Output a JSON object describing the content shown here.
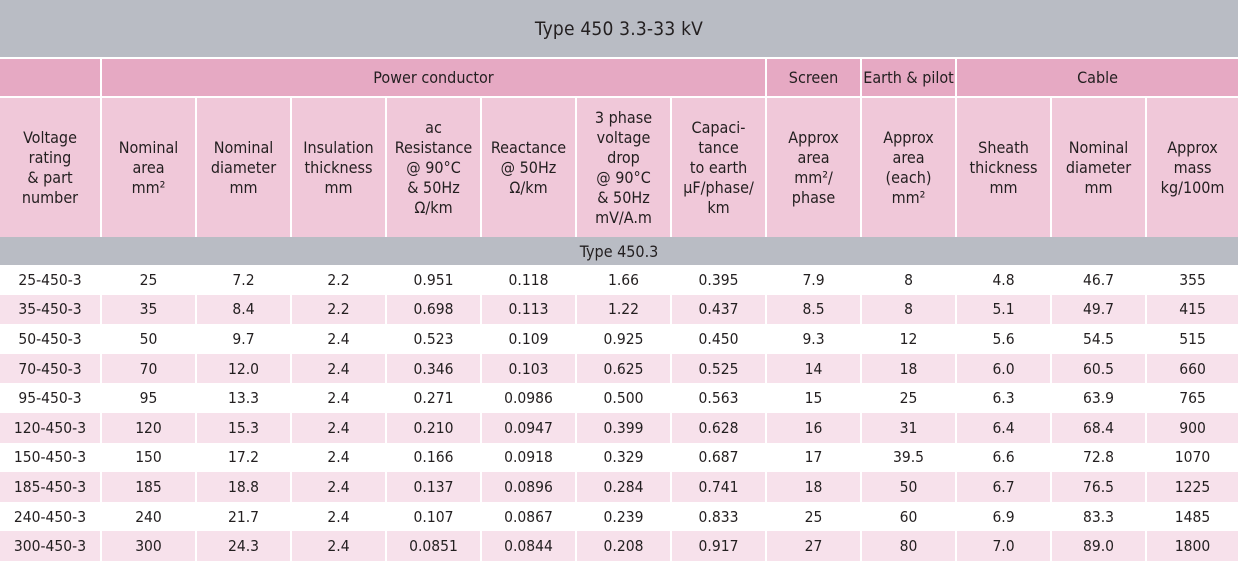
{
  "title": "Type 450  3.3-33 kV",
  "groups": {
    "power_conductor": "Power conductor",
    "screen": "Screen",
    "earth_pilot": "Earth & pilot",
    "cable": "Cable"
  },
  "columns": [
    "Voltage\nrating\n& part\nnumber",
    "Nominal\narea\nmm²",
    "Nominal\ndiameter\nmm",
    "Insulation\nthickness\nmm",
    "ac\nResistance\n@ 90°C\n& 50Hz\nΩ/km",
    "Reactance\n@ 50Hz\nΩ/km",
    "3 phase\nvoltage\ndrop\n@ 90°C\n& 50Hz\nmV/A.m",
    "Capaci-\ntance\nto earth\nμF/phase/\nkm",
    "Approx\narea\nmm²/\nphase",
    "Approx\narea\n(each)\nmm²",
    "Sheath\nthickness\nmm",
    "Nominal\ndiameter\nmm",
    "Approx\nmass\nkg/100m"
  ],
  "section_label": "Type 450.3",
  "rows": [
    [
      "25-450-3",
      "25",
      "7.2",
      "2.2",
      "0.951",
      "0.118",
      "1.66",
      "0.395",
      "7.9",
      "8",
      "4.8",
      "46.7",
      "355"
    ],
    [
      "35-450-3",
      "35",
      "8.4",
      "2.2",
      "0.698",
      "0.113",
      "1.22",
      "0.437",
      "8.5",
      "8",
      "5.1",
      "49.7",
      "415"
    ],
    [
      "50-450-3",
      "50",
      "9.7",
      "2.4",
      "0.523",
      "0.109",
      "0.925",
      "0.450",
      "9.3",
      "12",
      "5.6",
      "54.5",
      "515"
    ],
    [
      "70-450-3",
      "70",
      "12.0",
      "2.4",
      "0.346",
      "0.103",
      "0.625",
      "0.525",
      "14",
      "18",
      "6.0",
      "60.5",
      "660"
    ],
    [
      "95-450-3",
      "95",
      "13.3",
      "2.4",
      "0.271",
      "0.0986",
      "0.500",
      "0.563",
      "15",
      "25",
      "6.3",
      "63.9",
      "765"
    ],
    [
      "120-450-3",
      "120",
      "15.3",
      "2.4",
      "0.210",
      "0.0947",
      "0.399",
      "0.628",
      "16",
      "31",
      "6.4",
      "68.4",
      "900"
    ],
    [
      "150-450-3",
      "150",
      "17.2",
      "2.4",
      "0.166",
      "0.0918",
      "0.329",
      "0.687",
      "17",
      "39.5",
      "6.6",
      "72.8",
      "1070"
    ],
    [
      "185-450-3",
      "185",
      "18.8",
      "2.4",
      "0.137",
      "0.0896",
      "0.284",
      "0.741",
      "18",
      "50",
      "6.7",
      "76.5",
      "1225"
    ],
    [
      "240-450-3",
      "240",
      "21.7",
      "2.4",
      "0.107",
      "0.0867",
      "0.239",
      "0.833",
      "25",
      "60",
      "6.9",
      "83.3",
      "1485"
    ],
    [
      "300-450-3",
      "300",
      "24.3",
      "2.4",
      "0.0851",
      "0.0844",
      "0.208",
      "0.917",
      "27",
      "80",
      "7.0",
      "89.0",
      "1800"
    ]
  ],
  "colors": {
    "title_bg": "#b9bcc4",
    "group_header_bg": "#e6a9c3",
    "column_header_bg": "#f0c8d9",
    "row_alt_bg": "#f7e1eb"
  }
}
